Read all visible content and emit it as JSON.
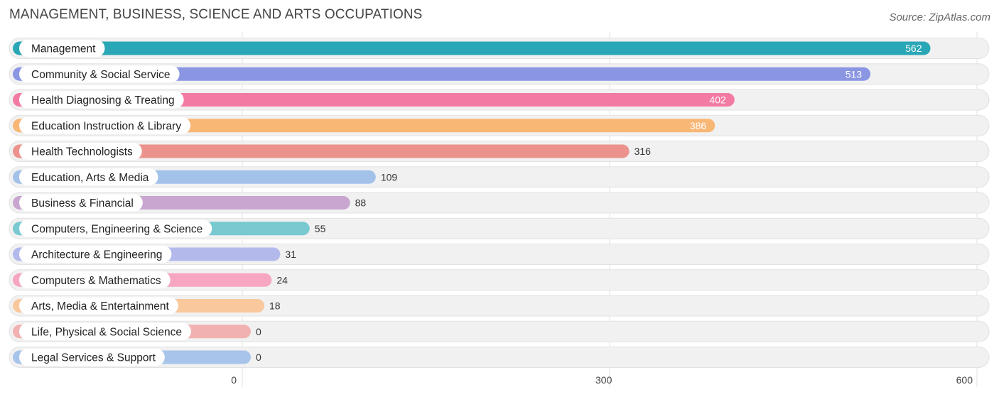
{
  "header": {
    "title": "MANAGEMENT, BUSINESS, SCIENCE AND ARTS OCCUPATIONS",
    "source": "Source: ZipAtlas.com"
  },
  "chart_data": {
    "type": "bar",
    "orientation": "horizontal",
    "title": "MANAGEMENT, BUSINESS, SCIENCE AND ARTS OCCUPATIONS",
    "categories": [
      "Management",
      "Community & Social Service",
      "Health Diagnosing & Treating",
      "Education Instruction & Library",
      "Health Technologists",
      "Education, Arts & Media",
      "Business & Financial",
      "Computers, Engineering & Science",
      "Architecture & Engineering",
      "Computers & Mathematics",
      "Arts, Media & Entertainment",
      "Life, Physical & Social Science",
      "Legal Services & Support"
    ],
    "values": [
      562,
      513,
      402,
      386,
      316,
      109,
      88,
      55,
      31,
      24,
      18,
      0,
      0
    ],
    "colors": [
      "#2aa7b6",
      "#8a96e2",
      "#f27aa3",
      "#f8b775",
      "#ec928c",
      "#a3c2ea",
      "#c8a6cf",
      "#78c9d0",
      "#b4b9ec",
      "#f7a6c2",
      "#f9c89d",
      "#f1b1b0",
      "#a9c4eb"
    ],
    "xlim": [
      0,
      600
    ],
    "xticks": [
      "0",
      "300",
      "600"
    ],
    "grid": true
  }
}
